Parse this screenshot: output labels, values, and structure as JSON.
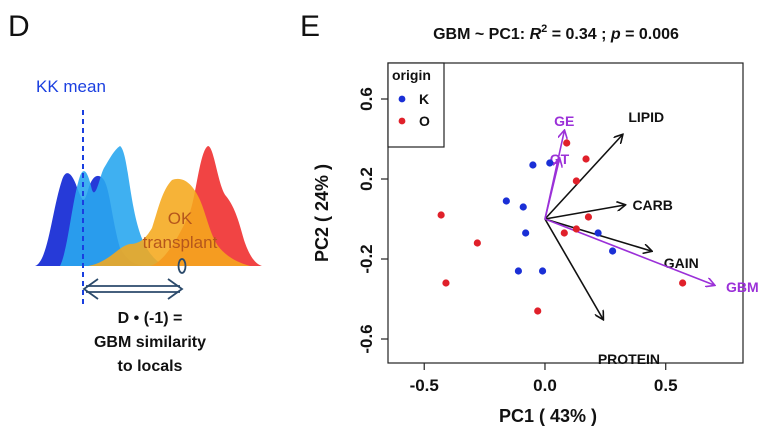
{
  "panels": {
    "d": {
      "letter": "D",
      "kk_mean_label": "KK mean",
      "ok_label_line1": "OK",
      "ok_label_line2": "transplant",
      "d_symbol": "D",
      "caption_line1": "D • (-1) =",
      "caption_line2": "GBM similarity",
      "caption_line3": "to locals",
      "colors": {
        "kk_dark": "#1a2fd6",
        "kk_light": "#2aa7f0",
        "ok_orange": "#f5a81c",
        "ok_red": "#f03a3a",
        "mean_line": "#1a3fe0",
        "arrow": "#2b4a6b"
      }
    },
    "e": {
      "letter": "E",
      "title_prefix": "GBM ~ PC1: ",
      "title_r": "R",
      "title_sup": "2",
      "title_mid": " = 0.34 ; ",
      "title_p": "p",
      "title_end": " = 0.006"
    }
  },
  "chart_data": {
    "type": "scatter",
    "xlabel": "PC1 ( 43% )",
    "ylabel": "PC2 ( 24% )",
    "xlim": [
      -0.65,
      0.82
    ],
    "ylim": [
      -0.72,
      0.78
    ],
    "xticks": [
      -0.5,
      0.0,
      0.5
    ],
    "xtick_labels": [
      "-0.5",
      "0.0",
      "0.5"
    ],
    "yticks": [
      -0.6,
      -0.2,
      0.2,
      0.6
    ],
    "ytick_labels": [
      "-0.6",
      "-0.2",
      "0.2",
      "0.6"
    ],
    "legend": {
      "title": "origin",
      "placement": "top-left",
      "entries": [
        {
          "label": "K",
          "color": "#1a2fd6"
        },
        {
          "label": "O",
          "color": "#e0202a"
        }
      ]
    },
    "series": [
      {
        "name": "K",
        "color": "#1a2fd6",
        "points": [
          [
            -0.16,
            0.09
          ],
          [
            -0.09,
            0.06
          ],
          [
            -0.05,
            0.27
          ],
          [
            0.02,
            0.28
          ],
          [
            -0.08,
            -0.07
          ],
          [
            -0.11,
            -0.26
          ],
          [
            -0.01,
            -0.26
          ],
          [
            0.22,
            -0.07
          ],
          [
            0.28,
            -0.16
          ]
        ]
      },
      {
        "name": "O",
        "color": "#e0202a",
        "points": [
          [
            -0.43,
            0.02
          ],
          [
            -0.28,
            -0.12
          ],
          [
            -0.41,
            -0.32
          ],
          [
            -0.03,
            -0.46
          ],
          [
            0.09,
            0.38
          ],
          [
            0.17,
            0.3
          ],
          [
            0.13,
            0.19
          ],
          [
            0.08,
            -0.07
          ],
          [
            0.13,
            -0.05
          ],
          [
            0.18,
            0.01
          ],
          [
            0.57,
            -0.32
          ]
        ]
      }
    ],
    "vectors": [
      {
        "label": "LIPID",
        "x": 0.32,
        "y": 0.42,
        "color": "#111111"
      },
      {
        "label": "CARB",
        "x": 0.33,
        "y": 0.07,
        "color": "#111111"
      },
      {
        "label": "GAIN",
        "x": 0.44,
        "y": -0.16,
        "color": "#111111"
      },
      {
        "label": "PROTEIN",
        "x": 0.24,
        "y": -0.5,
        "color": "#111111"
      },
      {
        "label": "GE",
        "x": 0.08,
        "y": 0.44,
        "color": "#9b30d8"
      },
      {
        "label": "GT",
        "x": 0.06,
        "y": 0.3,
        "color": "#9b30d8"
      },
      {
        "label": "GBM",
        "x": 0.7,
        "y": -0.33,
        "color": "#9b30d8"
      }
    ]
  }
}
